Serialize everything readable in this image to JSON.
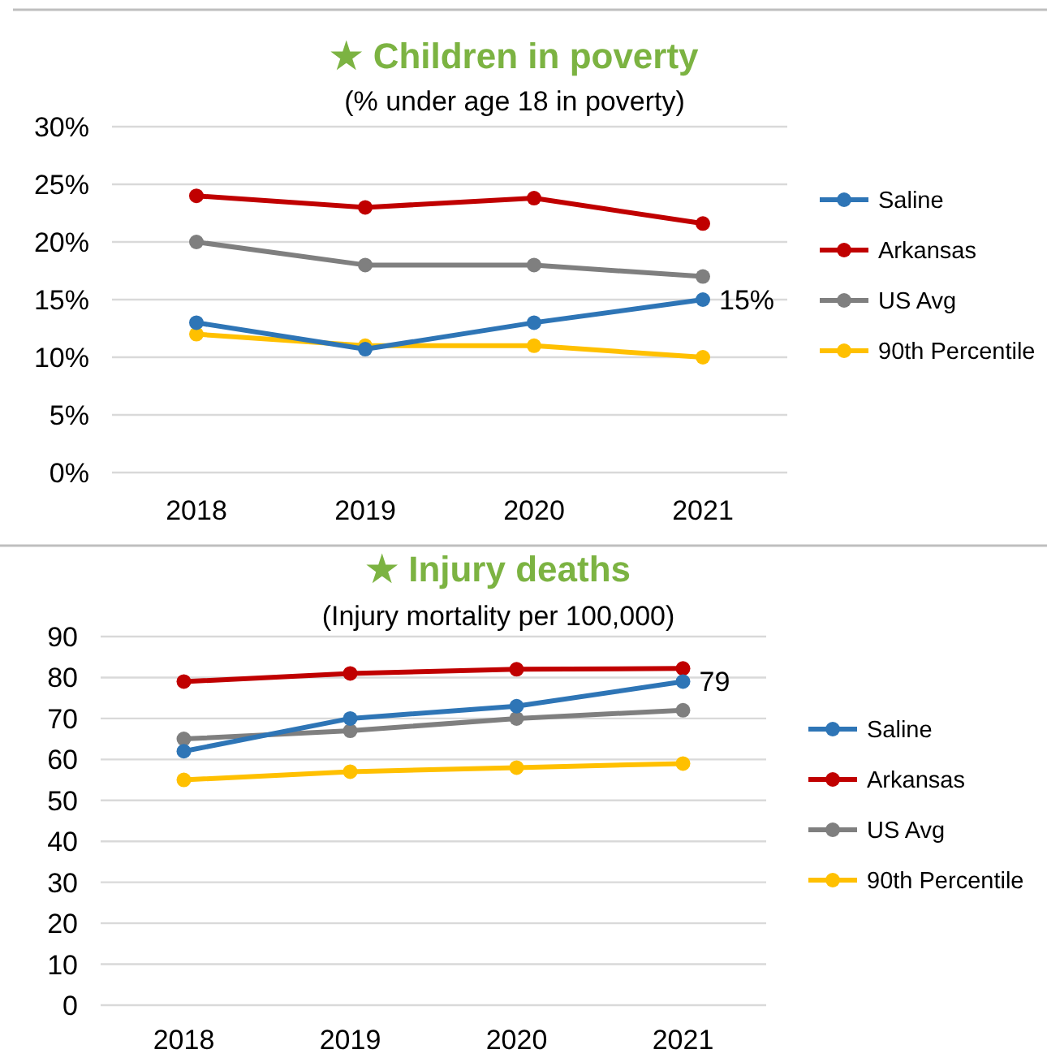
{
  "chart_data": [
    {
      "type": "line",
      "title": "★ Children in poverty",
      "subtitle": "(% under age 18 in poverty)",
      "categories": [
        "2018",
        "2019",
        "2020",
        "2021"
      ],
      "series": [
        {
          "name": "Saline",
          "color": "#2e75b6",
          "values": [
            13,
            10.7,
            13,
            15
          ],
          "value_labels": [
            null,
            null,
            null,
            "15%"
          ]
        },
        {
          "name": "Arkansas",
          "color": "#c00000",
          "values": [
            24,
            23,
            23.8,
            21.6
          ]
        },
        {
          "name": "US Avg",
          "color": "#7f7f7f",
          "values": [
            20,
            18,
            18,
            17
          ]
        },
        {
          "name": "90th Percentile",
          "color": "#ffc000",
          "values": [
            12,
            11,
            11,
            10
          ]
        }
      ],
      "ylim": [
        0,
        30
      ],
      "yticks": [
        {
          "value": 0,
          "label": "0%"
        },
        {
          "value": 5,
          "label": "5%"
        },
        {
          "value": 10,
          "label": "10%"
        },
        {
          "value": 15,
          "label": "15%"
        },
        {
          "value": 20,
          "label": "20%"
        },
        {
          "value": 25,
          "label": "25%"
        },
        {
          "value": 30,
          "label": "30%"
        }
      ],
      "grid": "y",
      "legend": "right",
      "marker": "circle",
      "line_style": "solid"
    },
    {
      "type": "line",
      "title": "★ Injury deaths",
      "subtitle": "(Injury mortality per 100,000)",
      "categories": [
        "2018",
        "2019",
        "2020",
        "2021"
      ],
      "series": [
        {
          "name": "Saline",
          "color": "#2e75b6",
          "values": [
            62,
            70,
            73,
            79
          ],
          "value_labels": [
            null,
            null,
            null,
            "79"
          ]
        },
        {
          "name": "Arkansas",
          "color": "#c00000",
          "values": [
            79,
            81,
            82,
            82.2
          ]
        },
        {
          "name": "US Avg",
          "color": "#7f7f7f",
          "values": [
            65,
            67,
            70,
            72
          ]
        },
        {
          "name": "90th Percentile",
          "color": "#ffc000",
          "values": [
            55,
            57,
            58,
            59
          ]
        }
      ],
      "ylim": [
        0,
        90
      ],
      "yticks": [
        0,
        10,
        20,
        30,
        40,
        50,
        60,
        70,
        80,
        90
      ],
      "grid": "y",
      "legend": "right",
      "marker": "circle",
      "line_style": "solid"
    }
  ]
}
